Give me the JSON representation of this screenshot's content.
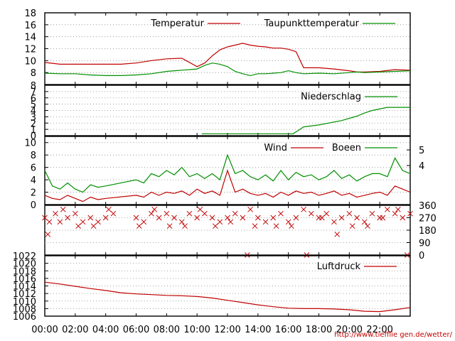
{
  "chart_data": [
    {
      "type": "line",
      "id": "temperature-panel",
      "ylim": [
        6,
        18
      ],
      "yticks": [
        "8",
        "10",
        "12",
        "14",
        "16",
        "18"
      ],
      "legend_position": "top",
      "grid": true,
      "series": [
        {
          "name": "Temperatur",
          "color": "#c00000",
          "x": [
            0,
            1,
            2,
            3,
            4,
            5,
            6,
            7,
            8,
            9,
            10,
            10.5,
            11,
            11.5,
            12,
            12.5,
            13,
            13.5,
            14,
            14.5,
            15,
            15.5,
            16,
            16.5,
            17,
            18,
            19,
            20,
            20.5,
            21,
            22,
            23,
            24
          ],
          "y": [
            9.7,
            9.4,
            9.4,
            9.4,
            9.4,
            9.4,
            9.6,
            10.0,
            10.3,
            10.4,
            9.0,
            9.6,
            10.8,
            11.8,
            12.3,
            12.6,
            12.9,
            12.6,
            12.4,
            12.3,
            12.1,
            12.1,
            11.9,
            11.5,
            8.8,
            8.8,
            8.6,
            8.3,
            8.1,
            8.1,
            8.2,
            8.5,
            8.4
          ]
        },
        {
          "name": "Taupunkttemperatur",
          "color": "#009000",
          "x": [
            0,
            1,
            2,
            3,
            4,
            5,
            6,
            7,
            8,
            9,
            10,
            10.5,
            11,
            11.5,
            12,
            12.5,
            13,
            13.5,
            14,
            14.5,
            15,
            15.5,
            16,
            16.5,
            17,
            18,
            19,
            20,
            20.5,
            21,
            22,
            23,
            24
          ],
          "y": [
            7.9,
            7.8,
            7.8,
            7.6,
            7.5,
            7.5,
            7.6,
            7.8,
            8.2,
            8.4,
            8.6,
            9.2,
            9.6,
            9.4,
            9.0,
            8.2,
            7.8,
            7.5,
            7.8,
            7.8,
            7.9,
            8.0,
            8.3,
            8.0,
            7.8,
            7.9,
            7.8,
            8.0,
            8.1,
            8.0,
            8.1,
            8.2,
            8.3
          ]
        }
      ]
    },
    {
      "type": "line",
      "id": "precipitation-panel",
      "ylim": [
        0,
        8
      ],
      "yticks": [
        "0",
        "1",
        "2",
        "3",
        "4",
        "5",
        "6",
        "7",
        "8"
      ],
      "grid": true,
      "series": [
        {
          "name": "Niederschlag",
          "color": "#009000",
          "x": [
            10.3,
            16.3,
            16.5,
            17,
            18,
            19.5,
            20.5,
            21,
            21.5,
            22.5,
            24
          ],
          "y": [
            0.3,
            0.3,
            0.6,
            1.4,
            1.7,
            2.4,
            3.1,
            3.6,
            4.0,
            4.5,
            4.5
          ]
        }
      ]
    },
    {
      "type": "line",
      "id": "wind-panel",
      "ylim": [
        0,
        11
      ],
      "yticks": [
        "0",
        "2",
        "4",
        "6",
        "8",
        "10"
      ],
      "y2ticks": [
        "4",
        "5"
      ],
      "grid": true,
      "series": [
        {
          "name": "Wind",
          "color": "#c00000",
          "x": [
            0,
            0.5,
            1,
            1.5,
            2,
            2.5,
            3,
            3.5,
            4,
            6,
            6.5,
            7,
            7.5,
            8,
            8.5,
            9,
            9.5,
            10,
            10.5,
            11,
            11.5,
            12,
            12.5,
            13,
            13.5,
            14,
            14.5,
            15,
            15.5,
            16,
            16.5,
            17,
            17.5,
            18,
            18.5,
            19,
            19.5,
            20,
            20.5,
            21,
            21.5,
            22,
            22.5,
            23,
            23.5,
            24
          ],
          "y": [
            1.5,
            1.0,
            0.8,
            1.5,
            1.0,
            0.5,
            1.2,
            0.8,
            1.0,
            1.5,
            1.2,
            2.0,
            1.5,
            2.0,
            1.8,
            2.2,
            1.5,
            2.5,
            1.8,
            2.2,
            1.5,
            5.5,
            2.0,
            2.5,
            1.8,
            1.5,
            1.8,
            1.2,
            2.0,
            1.5,
            2.2,
            1.8,
            2.0,
            1.5,
            1.8,
            2.2,
            1.5,
            1.8,
            1.2,
            1.5,
            1.8,
            2.0,
            1.5,
            3.0,
            2.5,
            2.0
          ]
        },
        {
          "name": "Boeen",
          "color": "#009000",
          "x": [
            0,
            0.5,
            1,
            1.5,
            2,
            2.5,
            3,
            3.5,
            4,
            6,
            6.5,
            7,
            7.5,
            8,
            8.5,
            9,
            9.5,
            10,
            10.5,
            11,
            11.5,
            12,
            12.5,
            13,
            13.5,
            14,
            14.5,
            15,
            15.5,
            16,
            16.5,
            17,
            17.5,
            18,
            18.5,
            19,
            19.5,
            20,
            20.5,
            21,
            21.5,
            22,
            22.5,
            23,
            23.5,
            24
          ],
          "y": [
            5.5,
            3.0,
            2.5,
            3.5,
            2.5,
            2.0,
            3.2,
            2.8,
            3.0,
            4.0,
            3.5,
            5.0,
            4.5,
            5.5,
            4.8,
            6.0,
            4.5,
            5.0,
            4.2,
            5.0,
            4.0,
            8.0,
            5.0,
            5.5,
            4.5,
            4.0,
            4.8,
            3.8,
            5.5,
            4.0,
            5.2,
            4.5,
            4.8,
            4.0,
            4.5,
            5.5,
            4.2,
            4.8,
            3.8,
            4.5,
            5.0,
            5.0,
            4.5,
            7.5,
            5.5,
            5.0
          ]
        }
      ]
    },
    {
      "type": "scatter",
      "id": "wind-direction-panel",
      "ylim": [
        0,
        360
      ],
      "y2ticks": [
        "0",
        "90",
        "180",
        "270",
        "360"
      ],
      "grid": true,
      "marker": "x",
      "color": "#c00000",
      "x": [
        0,
        0.3,
        0.7,
        1,
        1.5,
        2,
        2.5,
        3,
        3.5,
        4,
        4.5,
        6,
        6.5,
        7,
        7.5,
        8,
        8.5,
        9,
        9.5,
        10,
        10.5,
        11,
        11.5,
        12,
        12.5,
        13,
        13.3,
        13.5,
        14,
        14.5,
        15,
        15.5,
        16,
        16.5,
        17,
        17.5,
        18,
        18.5,
        19,
        19.5,
        20,
        20.5,
        21,
        21.5,
        22,
        22.5,
        23,
        23.5,
        24,
        0.2,
        1.2,
        2.2,
        3.2,
        4.2,
        6.2,
        7.2,
        8.2,
        9.2,
        10.2,
        11.2,
        12.2,
        13.8,
        15.2,
        16.2,
        17.2,
        18.2,
        19.2,
        20.2,
        21.2,
        22.2,
        23.2,
        23.8
      ],
      "y": [
        270,
        240,
        300,
        240,
        270,
        300,
        240,
        270,
        240,
        270,
        300,
        270,
        240,
        300,
        270,
        300,
        270,
        240,
        300,
        270,
        300,
        270,
        240,
        270,
        300,
        270,
        0,
        330,
        270,
        240,
        270,
        300,
        240,
        270,
        330,
        300,
        270,
        300,
        240,
        270,
        300,
        270,
        240,
        300,
        270,
        330,
        300,
        270,
        300,
        150,
        330,
        210,
        210,
        330,
        210,
        330,
        210,
        210,
        330,
        210,
        240,
        210,
        210,
        210,
        0,
        270,
        150,
        210,
        210,
        270,
        330,
        0
      ]
    },
    {
      "type": "line",
      "id": "pressure-panel",
      "ylim": [
        1006,
        1022
      ],
      "yticks": [
        "1006",
        "1008",
        "1010",
        "1012",
        "1014",
        "1016",
        "1018",
        "1020",
        "1022"
      ],
      "grid": true,
      "series": [
        {
          "name": "Luftdruck",
          "color": "#c00000",
          "x": [
            0,
            1,
            2,
            3,
            4,
            5,
            6,
            7,
            8,
            9,
            10,
            11,
            12,
            13,
            14,
            15,
            16,
            17,
            18,
            19,
            20,
            21,
            22,
            23,
            24
          ],
          "y": [
            1015.0,
            1014.5,
            1013.9,
            1013.3,
            1012.8,
            1012.2,
            1011.9,
            1011.7,
            1011.5,
            1011.4,
            1011.2,
            1010.8,
            1010.2,
            1009.6,
            1009.0,
            1008.5,
            1008.1,
            1008.0,
            1008.0,
            1007.9,
            1007.7,
            1007.3,
            1007.2,
            1007.7,
            1008.3
          ]
        }
      ]
    }
  ],
  "x_axis": {
    "range": [
      "00:00",
      "24:00"
    ],
    "tick_labels": [
      "00:00",
      "02:00",
      "04:00",
      "06:00",
      "08:00",
      "10:00",
      "12:00",
      "14:00",
      "16:00",
      "18:00",
      "20:00",
      "22:00"
    ]
  },
  "footer": {
    "url": "http://www.tiefflie gen.de/wetter/",
    "url_color": "#c00000"
  }
}
